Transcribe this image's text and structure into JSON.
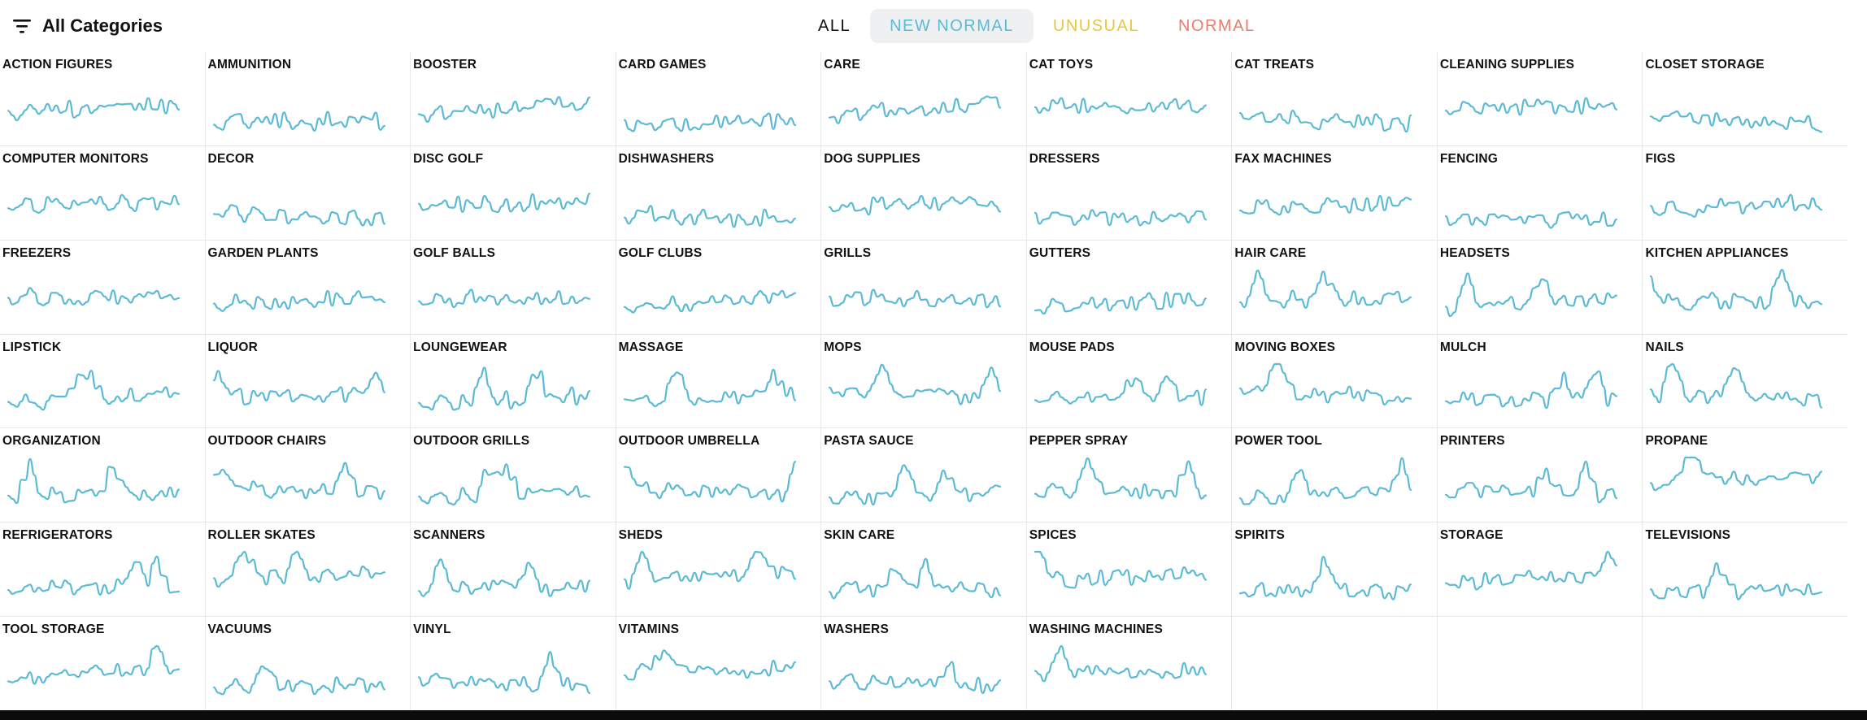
{
  "filter": {
    "label": "All Categories",
    "icon": "filter-icon"
  },
  "tabs": [
    {
      "label": "ALL",
      "color": "#111111",
      "pill": false
    },
    {
      "label": "NEW NORMAL",
      "color": "#5bbad5",
      "pill": true
    },
    {
      "label": "UNUSUAL",
      "color": "#e8c840",
      "pill": false
    },
    {
      "label": "NORMAL",
      "color": "#ec7d6b",
      "pill": false
    }
  ],
  "line_color": "#5bbad5",
  "categories": [
    "ACTION FIGURES",
    "AMMUNITION",
    "BOOSTER",
    "CARD GAMES",
    "CARE",
    "CAT TOYS",
    "CAT TREATS",
    "CLEANING SUPPLIES",
    "CLOSET STORAGE",
    "COMPUTER MONITORS",
    "DECOR",
    "DISC GOLF",
    "DISHWASHERS",
    "DOG SUPPLIES",
    "DRESSERS",
    "FAX MACHINES",
    "FENCING",
    "FIGS",
    "FREEZERS",
    "GARDEN PLANTS",
    "GOLF BALLS",
    "GOLF CLUBS",
    "GRILLS",
    "GUTTERS",
    "HAIR CARE",
    "HEADSETS",
    "KITCHEN APPLIANCES",
    "LIPSTICK",
    "LIQUOR",
    "LOUNGEWEAR",
    "MASSAGE",
    "MOPS",
    "MOUSE PADS",
    "MOVING BOXES",
    "MULCH",
    "NAILS",
    "ORGANIZATION",
    "OUTDOOR CHAIRS",
    "OUTDOOR GRILLS",
    "OUTDOOR UMBRELLA",
    "PASTA SAUCE",
    "PEPPER SPRAY",
    "POWER TOOL",
    "PRINTERS",
    "PROPANE",
    "REFRIGERATORS",
    "ROLLER SKATES",
    "SCANNERS",
    "SHEDS",
    "SKIN CARE",
    "SPICES",
    "SPIRITS",
    "STORAGE",
    "TELEVISIONS",
    "TOOL STORAGE",
    "VACUUMS",
    "VINYL",
    "VITAMINS",
    "WASHERS",
    "WASHING MACHINES"
  ],
  "grid": {
    "columns": 9,
    "rows": 7
  }
}
